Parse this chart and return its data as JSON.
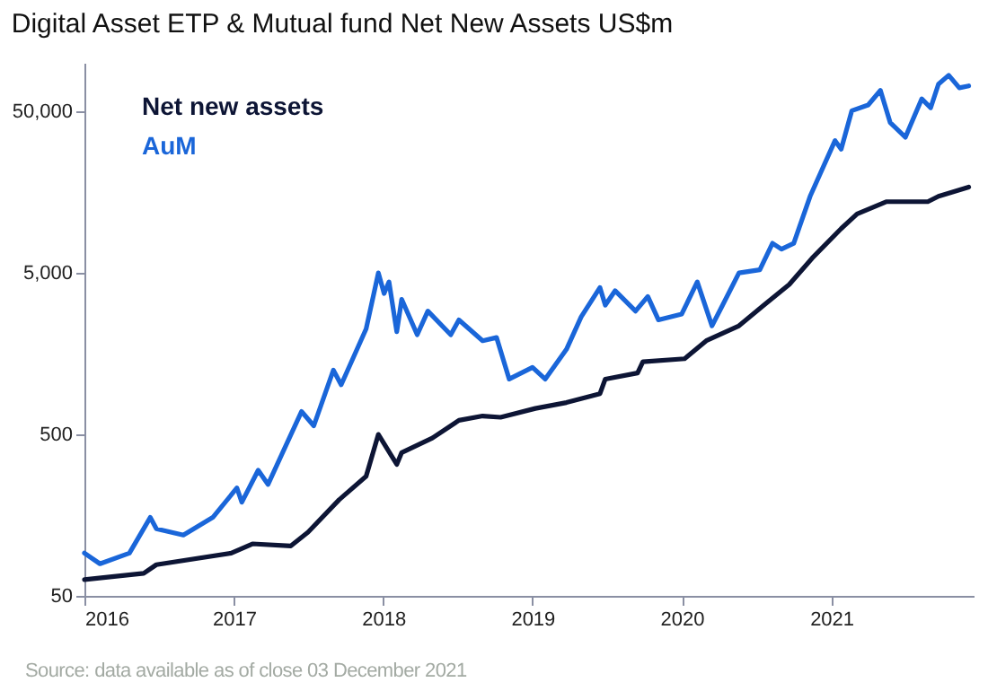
{
  "chart_data": {
    "type": "line",
    "title": "Digital Asset ETP & Mutual fund Net New Assets US$m",
    "annotations": [
      "Source: data available as of close 03 December 2021"
    ],
    "log": true,
    "legend": "top left",
    "xlim": [
      "2016-01-01",
      "2021-12-15"
    ],
    "xticks": [
      "2016",
      "2017",
      "2018",
      "2019",
      "2020",
      "2021"
    ],
    "ylim": [
      50,
      100000
    ],
    "yticks": [
      50,
      500,
      {
        "value": 5000,
        "label": "5,000"
      },
      {
        "value": 50000,
        "label": "50,000"
      }
    ],
    "series": [
      {
        "name": "Net new assets",
        "color": "#0d1535",
        "x": [
          "2016-01-01",
          "2016-05-25",
          "2016-06-25",
          "2016-12-25",
          "2017-02-15",
          "2017-05-20",
          "2017-07-01",
          "2017-09-15",
          "2017-11-20",
          "2017-12-20",
          "2018-02-03",
          "2018-02-15",
          "2018-05-01",
          "2018-07-05",
          "2018-09-01",
          "2018-10-15",
          "2019-01-08",
          "2019-03-25",
          "2019-06-15",
          "2019-06-28",
          "2019-09-15",
          "2019-09-28",
          "2020-01-08",
          "2020-03-01",
          "2020-05-20",
          "2020-07-20",
          "2020-09-20",
          "2020-11-15",
          "2021-01-25",
          "2021-03-05",
          "2021-05-15",
          "2021-08-25",
          "2021-09-20",
          "2021-12-03"
        ],
        "values": [
          63,
          69,
          78,
          92,
          105,
          102,
          124,
          197,
          275,
          500,
          326,
          386,
          475,
          611,
          650,
          638,
          724,
          787,
          893,
          1100,
          1200,
          1410,
          1470,
          1900,
          2350,
          3160,
          4240,
          6170,
          9400,
          11600,
          13800,
          13800,
          14900,
          17000
        ]
      },
      {
        "name": "AuM",
        "color": "#1a66d9",
        "x": [
          "2016-01-01",
          "2016-02-08",
          "2016-04-20",
          "2016-06-10",
          "2016-06-25",
          "2016-08-30",
          "2016-11-10",
          "2017-01-08",
          "2017-01-20",
          "2017-03-01",
          "2017-03-25",
          "2017-06-15",
          "2017-07-15",
          "2017-09-01",
          "2017-09-20",
          "2017-11-20",
          "2017-12-20",
          "2018-01-03",
          "2018-01-15",
          "2018-02-03",
          "2018-02-15",
          "2018-03-25",
          "2018-04-20",
          "2018-06-15",
          "2018-07-05",
          "2018-09-01",
          "2018-10-05",
          "2018-11-05",
          "2019-01-01",
          "2019-02-01",
          "2019-03-25",
          "2019-04-30",
          "2019-06-15",
          "2019-06-28",
          "2019-07-22",
          "2019-09-10",
          "2019-10-10",
          "2019-11-05",
          "2020-01-01",
          "2020-02-08",
          "2020-03-15",
          "2020-04-10",
          "2020-05-20",
          "2020-07-10",
          "2020-08-10",
          "2020-09-01",
          "2020-10-01",
          "2020-11-10",
          "2021-01-10",
          "2021-01-25",
          "2021-02-20",
          "2021-04-01",
          "2021-05-01",
          "2021-05-25",
          "2021-07-01",
          "2021-08-10",
          "2021-09-01",
          "2021-09-20",
          "2021-10-15",
          "2021-11-10",
          "2021-12-03"
        ],
        "values": [
          92,
          79,
          92,
          153,
          130,
          119,
          153,
          233,
          190,
          300,
          245,
          693,
          565,
          1250,
          1015,
          2250,
          5000,
          3730,
          4400,
          2160,
          3430,
          2070,
          2900,
          2070,
          2560,
          1900,
          1990,
          1100,
          1300,
          1100,
          1680,
          2670,
          4060,
          3160,
          3880,
          2900,
          3570,
          2560,
          2780,
          4400,
          2350,
          3160,
          5000,
          5230,
          7630,
          7020,
          7630,
          14900,
          33000,
          29200,
          50500,
          54800,
          67500,
          42600,
          34600,
          59800,
          52700,
          73800,
          83700,
          70000,
          72000
        ]
      }
    ]
  }
}
